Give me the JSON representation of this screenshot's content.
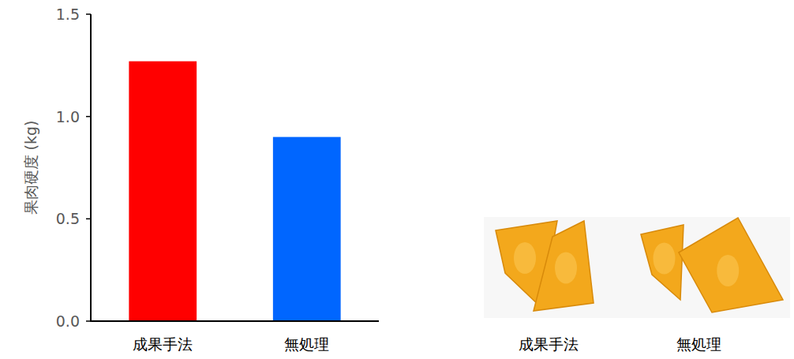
{
  "chart_data": {
    "type": "bar",
    "y_label": "果肉硬度 (kg)",
    "categories": [
      "成果手法",
      "無処理"
    ],
    "values": [
      1.27,
      0.9
    ],
    "colors": [
      "#ff0000",
      "#0066ff"
    ],
    "ylim": [
      0,
      1.5
    ],
    "yticks": [
      {
        "value": 0,
        "label": "0.0"
      },
      0.5,
      {
        "value": 1,
        "label": "1.0"
      },
      1.5
    ],
    "grid": false
  },
  "photo": {
    "labels": [
      "成果手法",
      "無処理"
    ]
  }
}
